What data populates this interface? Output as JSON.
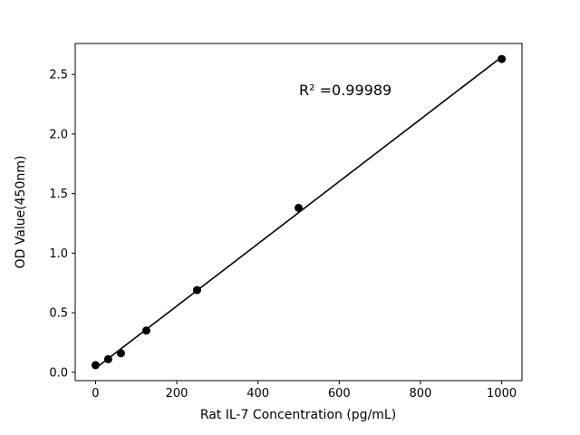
{
  "figure": {
    "background": "#ffffff"
  },
  "chart_data": {
    "type": "scatter",
    "title": "",
    "xlabel": "Rat IL-7 Concentration (pg/mL)",
    "ylabel": "OD Value(450nm)",
    "x": [
      0,
      31.25,
      62.5,
      125,
      250,
      500,
      1000
    ],
    "y": [
      0.06,
      0.11,
      0.16,
      0.35,
      0.69,
      1.38,
      2.63
    ],
    "fit_line": true,
    "r_squared_label": "R² =0.99989",
    "xlim": [
      -50,
      1050
    ],
    "ylim": [
      -0.07,
      2.76
    ],
    "x_ticks": [
      0,
      200,
      400,
      600,
      800,
      1000
    ],
    "y_ticks": [
      0.0,
      0.5,
      1.0,
      1.5,
      2.0,
      2.5
    ],
    "point_color": "#000000",
    "line_color": "#000000",
    "axis_color": "#000000",
    "grid": false,
    "legend": "none"
  }
}
